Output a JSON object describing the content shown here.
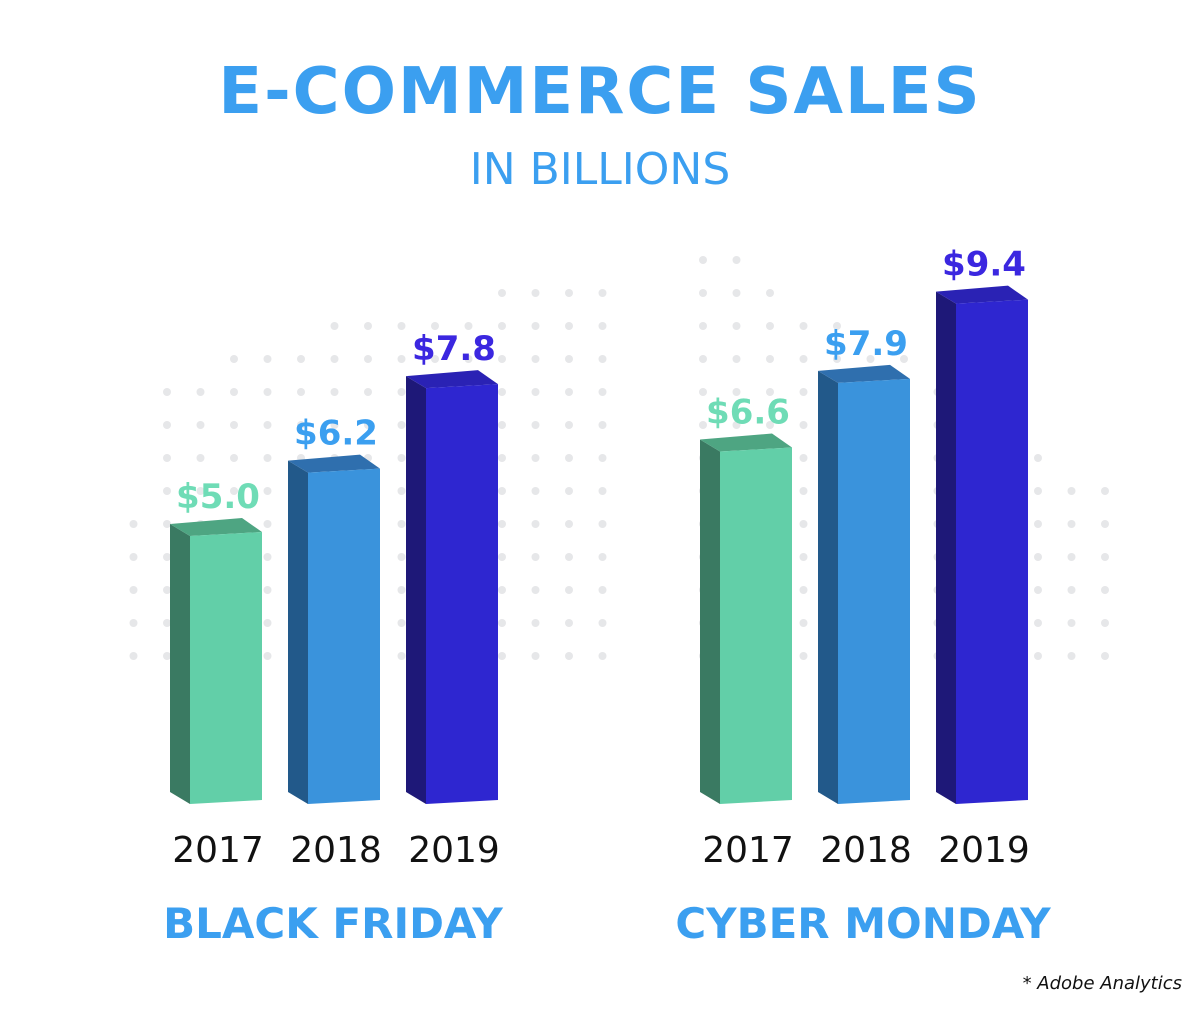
{
  "chart_data": {
    "type": "bar",
    "title": "E-COMMERCE SALES",
    "subtitle": "IN BILLIONS",
    "categories": [
      "2017",
      "2018",
      "2019"
    ],
    "groups": [
      {
        "name": "BLACK FRIDAY",
        "values": [
          5.0,
          6.2,
          7.8
        ],
        "labels": [
          "$5.0",
          "$6.2",
          "$7.8"
        ]
      },
      {
        "name": "CYBER MONDAY",
        "values": [
          6.6,
          7.9,
          9.4
        ],
        "labels": [
          "$6.6",
          "$7.9",
          "$9.4"
        ]
      }
    ],
    "series_colors": {
      "2017": {
        "front": "#62cfa8",
        "side": "#3a7a62",
        "top": "#4ea582",
        "label": "#6fdcb6"
      },
      "2018": {
        "front": "#3a93dc",
        "side": "#22598a",
        "top": "#2f6fae",
        "label": "#3b9ff0"
      },
      "2019": {
        "front": "#2e26d0",
        "side": "#1e1878",
        "top": "#2a22b4",
        "label": "#3b27e0"
      }
    },
    "ylim": [
      0,
      10
    ],
    "grid": false,
    "legend": "none",
    "source": "* Adobe Analytics"
  }
}
